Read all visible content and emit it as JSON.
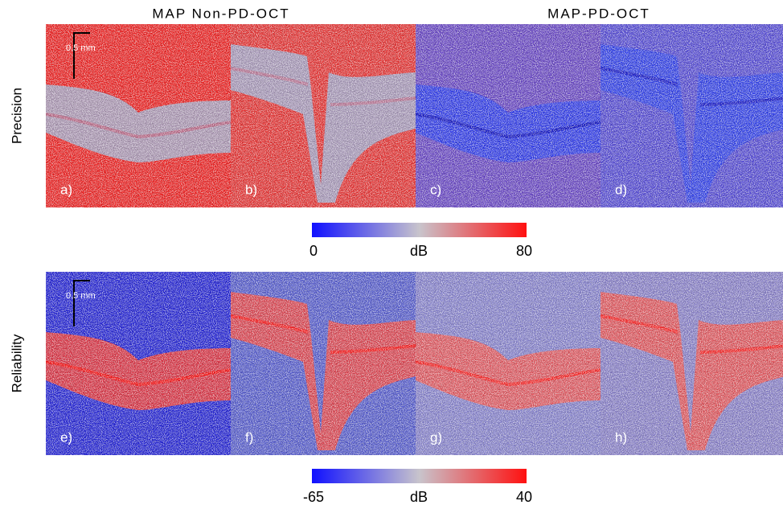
{
  "columns": [
    "MAP Non-PD-OCT",
    "MAP-PD-OCT"
  ],
  "rows": [
    {
      "label": "Precision",
      "panels": [
        "a)",
        "b)",
        "c)",
        "d)"
      ],
      "scale_bar": "0.5 mm",
      "colorbar": {
        "min": "0",
        "unit": "dB",
        "max": "80"
      }
    },
    {
      "label": "Reliability",
      "panels": [
        "e)",
        "f)",
        "g)",
        "h)"
      ],
      "scale_bar": "0.5 mm",
      "colorbar": {
        "min": "-65",
        "unit": "dB",
        "max": "40"
      }
    }
  ]
}
